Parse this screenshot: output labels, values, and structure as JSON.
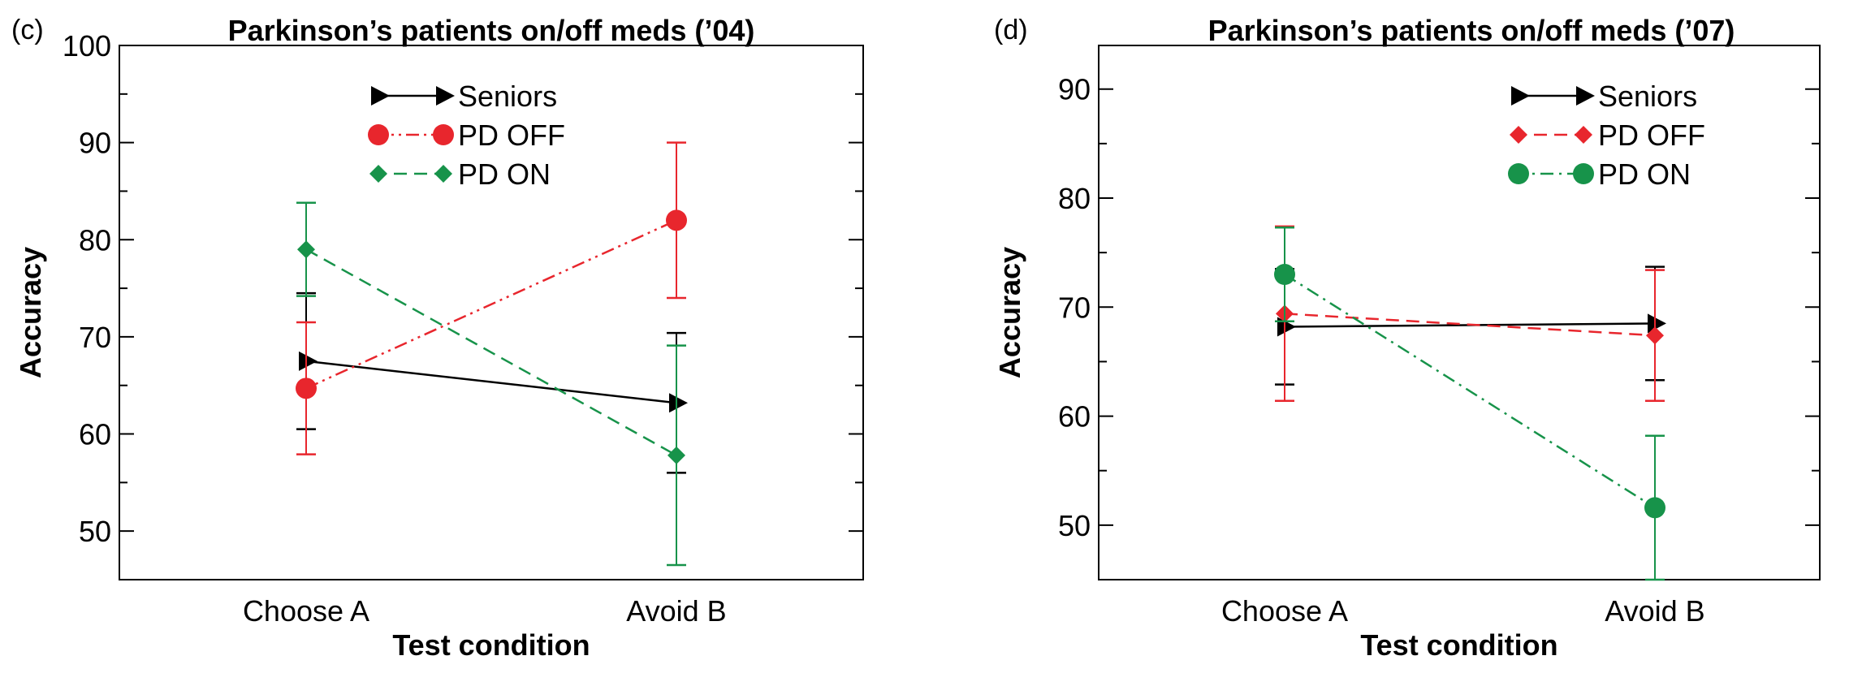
{
  "chart_data": [
    {
      "type": "line",
      "panel_label": "(c)",
      "title": "Parkinson’s patients on/off meds (’04)",
      "xlabel": "Test condition",
      "ylabel": "Accuracy",
      "categories": [
        "Choose A",
        "Avoid B"
      ],
      "ylim": [
        45,
        100
      ],
      "yticks": [
        50,
        60,
        70,
        80,
        90,
        100
      ],
      "legend_position": "top-center",
      "series": [
        {
          "name": "Seniors",
          "color": "#000000",
          "marker": "triangle",
          "dash": "solid",
          "values": [
            67.5,
            63.2
          ],
          "errors": [
            7.0,
            7.2
          ]
        },
        {
          "name": "PD OFF",
          "color": "#e8262d",
          "marker": "circle",
          "dash": "dash-dot-dot",
          "values": [
            64.7,
            82.0
          ],
          "errors": [
            6.8,
            8.0
          ]
        },
        {
          "name": "PD ON",
          "color": "#17934a",
          "marker": "diamond",
          "dash": "dash",
          "values": [
            79.0,
            57.8
          ],
          "errors": [
            4.8,
            11.3
          ]
        }
      ]
    },
    {
      "type": "line",
      "panel_label": "(d)",
      "title": "Parkinson’s patients on/off meds (’07)",
      "xlabel": "Test condition",
      "ylabel": "Accuracy",
      "categories": [
        "Choose A",
        "Avoid B"
      ],
      "ylim": [
        45,
        94
      ],
      "yticks": [
        50,
        60,
        70,
        80,
        90
      ],
      "legend_position": "top-right",
      "series": [
        {
          "name": "Seniors",
          "color": "#000000",
          "marker": "triangle",
          "dash": "solid",
          "values": [
            68.2,
            68.5
          ],
          "errors": [
            5.3,
            5.2
          ]
        },
        {
          "name": "PD OFF",
          "color": "#e8262d",
          "marker": "diamond",
          "dash": "dash",
          "values": [
            69.4,
            67.4
          ],
          "errors": [
            8.0,
            6.0
          ]
        },
        {
          "name": "PD ON",
          "color": "#17934a",
          "marker": "circle",
          "dash": "dash-dot",
          "values": [
            73.0,
            51.6
          ],
          "errors": [
            4.3,
            6.6
          ]
        }
      ]
    }
  ]
}
